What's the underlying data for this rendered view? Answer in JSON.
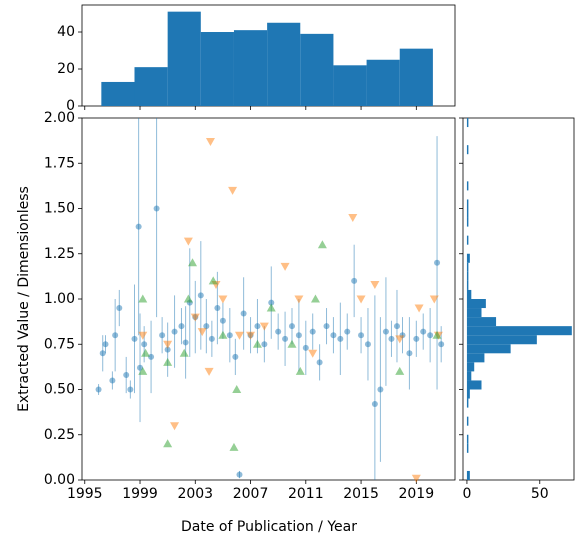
{
  "chart_data": [
    {
      "type": "scatter",
      "xlabel": "Date of Publication / Year",
      "ylabel": "Extracted Value / Dimensionless",
      "xlim": [
        1994.8,
        2021.8
      ],
      "xticks": [
        1995,
        1999,
        2003,
        2007,
        2011,
        2015,
        2019
      ],
      "ylim": [
        0,
        2
      ],
      "yticks": [
        {
          "value": 0,
          "label": "0.00"
        },
        {
          "value": 0.25,
          "label": "0.25"
        },
        {
          "value": 0.5,
          "label": "0.50"
        },
        {
          "value": 0.75,
          "label": "0.75"
        },
        {
          "value": 1,
          "label": "1.00"
        },
        {
          "value": 1.25,
          "label": "1.25"
        },
        {
          "value": 1.5,
          "label": "1.50"
        },
        {
          "value": 1.75,
          "label": "1.75"
        },
        {
          "value": 2,
          "label": "2.00"
        }
      ],
      "series": [
        {
          "color": "#1f77b4",
          "marker": "circle",
          "x": [
            1996.0,
            1996.3,
            1996.5,
            1997.0,
            1997.2,
            1997.5,
            1998.0,
            1998.3,
            1998.6,
            1998.9,
            1999.0,
            1999.3,
            1999.8,
            2000.2,
            2000.6,
            2001.0,
            2001.5,
            2002.0,
            2002.3,
            2002.6,
            2003.0,
            2003.4,
            2003.8,
            2004.2,
            2004.6,
            2005.0,
            2005.5,
            2005.9,
            2006.2,
            2006.5,
            2007.0,
            2007.5,
            2008.0,
            2008.5,
            2009.0,
            2009.5,
            2010.0,
            2010.5,
            2011.0,
            2011.5,
            2012.0,
            2012.5,
            2013.0,
            2013.5,
            2014.0,
            2014.5,
            2015.0,
            2015.5,
            2016.0,
            2016.4,
            2016.8,
            2017.2,
            2017.6,
            2018.0,
            2018.5,
            2019.0,
            2019.5,
            2020.0,
            2020.5,
            2020.8
          ],
          "values": [
            0.5,
            0.7,
            0.75,
            0.55,
            0.8,
            0.95,
            0.58,
            0.5,
            0.78,
            1.4,
            0.62,
            0.75,
            0.68,
            1.5,
            0.8,
            0.72,
            0.82,
            0.85,
            0.76,
            0.98,
            0.9,
            1.02,
            0.85,
            0.78,
            0.95,
            0.88,
            0.8,
            0.68,
            0.03,
            0.92,
            0.8,
            0.85,
            0.75,
            0.98,
            0.82,
            0.78,
            0.85,
            0.8,
            0.73,
            0.82,
            0.65,
            0.85,
            0.8,
            0.78,
            0.82,
            1.1,
            0.8,
            0.75,
            0.42,
            0.5,
            0.82,
            0.78,
            0.85,
            0.8,
            0.7,
            0.78,
            0.82,
            0.8,
            1.2,
            0.75
          ],
          "errors": [
            0.03,
            0.1,
            0.05,
            0.05,
            0.2,
            0.1,
            0.1,
            0.05,
            0.3,
            0.6,
            0.3,
            0.1,
            0.2,
            0.6,
            0.1,
            0.15,
            0.2,
            0.1,
            0.2,
            0.3,
            0.2,
            0.3,
            0.15,
            0.1,
            0.2,
            0.1,
            0.15,
            0.1,
            0.02,
            0.2,
            0.1,
            0.15,
            0.1,
            0.2,
            0.1,
            0.15,
            0.1,
            0.2,
            0.15,
            0.1,
            0.1,
            0.1,
            0.1,
            0.2,
            0.1,
            0.2,
            0.1,
            0.2,
            0.6,
            0.4,
            0.3,
            0.1,
            0.2,
            0.1,
            0.2,
            0.1,
            0.1,
            0.15,
            0.7,
            0.1
          ]
        },
        {
          "color": "#ff7f0e",
          "marker": "triangle-down",
          "x": [
            1999.2,
            2001.0,
            2001.5,
            2002.5,
            2003.0,
            2003.5,
            2004.1,
            2004.0,
            2004.5,
            2005.0,
            2005.7,
            2006.2,
            2007.0,
            2008.0,
            2009.5,
            2010.5,
            2011.5,
            2014.4,
            2015.0,
            2016.0,
            2017.8,
            2019.0,
            2019.2,
            2020.3,
            2020.6
          ],
          "values": [
            0.8,
            0.75,
            0.3,
            1.32,
            0.9,
            0.82,
            1.87,
            0.6,
            1.08,
            1.0,
            1.6,
            0.8,
            0.8,
            0.85,
            1.18,
            1.0,
            0.7,
            1.45,
            1.0,
            1.08,
            0.78,
            0.01,
            0.95,
            1.0,
            0.8
          ]
        },
        {
          "color": "#2ca02c",
          "marker": "triangle-up",
          "x": [
            1999.2,
            1999.2,
            1999.4,
            2001.0,
            2001.0,
            2002.2,
            2002.5,
            2002.8,
            2004.3,
            2005.0,
            2005.8,
            2006.0,
            2007.5,
            2008.5,
            2010.0,
            2010.6,
            2012.2,
            2011.7,
            2017.8,
            2020.5
          ],
          "values": [
            1.0,
            0.6,
            0.7,
            0.2,
            0.65,
            0.7,
            1.0,
            1.2,
            1.1,
            0.8,
            0.18,
            0.5,
            0.75,
            0.95,
            0.75,
            0.6,
            1.3,
            1.0,
            0.6,
            0.8
          ]
        }
      ]
    },
    {
      "type": "histogram",
      "orientation": "vertical",
      "color": "#1f77b4",
      "bins": [
        1996.2,
        1998.6,
        2001.0,
        2003.4,
        2005.8,
        2008.2,
        2010.6,
        2013.0,
        2015.4,
        2017.8,
        2020.2
      ],
      "counts": [
        13,
        21,
        51,
        40,
        41,
        45,
        39,
        22,
        25,
        31
      ],
      "ylim": [
        0,
        54.6
      ],
      "yticks": [
        0,
        20,
        40
      ]
    },
    {
      "type": "histogram",
      "orientation": "horizontal",
      "color": "#1f77b4",
      "bins": [
        0,
        0.05,
        0.1,
        0.15,
        0.2,
        0.25,
        0.3,
        0.35,
        0.4,
        0.45,
        0.5,
        0.55,
        0.6,
        0.65,
        0.7,
        0.75,
        0.8,
        0.85,
        0.9,
        0.95,
        1.0,
        1.05,
        1.1,
        1.15,
        1.2,
        1.25,
        1.3,
        1.35,
        1.4,
        1.45,
        1.5,
        1.55,
        1.6,
        1.65,
        1.7,
        1.75,
        1.8,
        1.85,
        1.9,
        1.95,
        2.0
      ],
      "counts": [
        2,
        0,
        0,
        1,
        1,
        0,
        1,
        0,
        1,
        2,
        10,
        3,
        5,
        12,
        30,
        48,
        72,
        20,
        10,
        13,
        3,
        1,
        1,
        1,
        2,
        0,
        1,
        0,
        1,
        1,
        1,
        0,
        1,
        0,
        0,
        0,
        1,
        0,
        0,
        1
      ],
      "xlim": [
        -2.7,
        73.5
      ],
      "xticks": [
        0,
        50
      ]
    }
  ]
}
